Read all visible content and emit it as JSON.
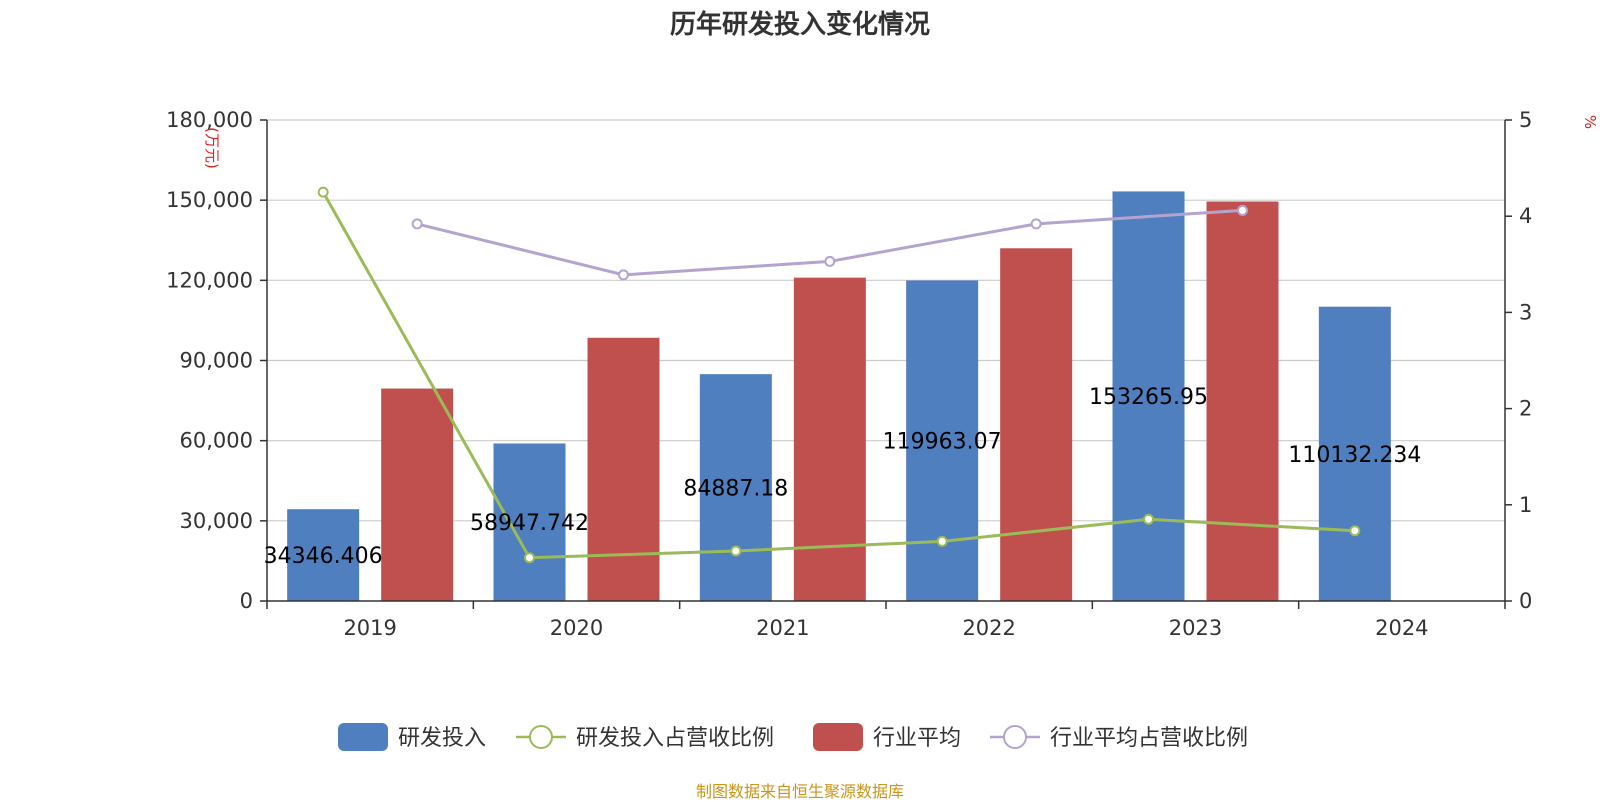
{
  "chart_data": {
    "type": "bar",
    "title": "历年研发投入变化情况",
    "categories": [
      "2019",
      "2020",
      "2021",
      "2022",
      "2023",
      "2024"
    ],
    "left_axis": {
      "unit": "(万元)",
      "range": [
        0,
        180000
      ],
      "ticks": [
        "0",
        "30,000",
        "60,000",
        "90,000",
        "120,000",
        "150,000",
        "180,000"
      ]
    },
    "right_axis": {
      "unit": "%",
      "range": [
        0,
        5
      ],
      "ticks": [
        "0",
        "1",
        "2",
        "3",
        "4",
        "5"
      ]
    },
    "grid": true,
    "legend_position": "bottom",
    "series": [
      {
        "name": "研发投入",
        "kind": "bar",
        "axis": "left",
        "color": "#4f7fbe",
        "values": [
          34346.406,
          58947.742,
          84887.18,
          119963.07,
          153265.95,
          110132.234
        ],
        "labels": [
          "34346.406",
          "58947.742",
          "84887.18",
          "119963.07",
          "153265.95",
          "110132.234"
        ]
      },
      {
        "name": "研发投入占营收比例",
        "kind": "line",
        "axis": "right",
        "color": "#9bbb59",
        "values": [
          4.25,
          0.45,
          0.52,
          0.62,
          0.85,
          0.73
        ]
      },
      {
        "name": "行业平均",
        "kind": "bar",
        "axis": "left",
        "color": "#c0504d",
        "values": [
          79500,
          98500,
          121000,
          132000,
          149500,
          null
        ]
      },
      {
        "name": "行业平均占营收比例",
        "kind": "line",
        "axis": "right",
        "color": "#b3a3cf",
        "values": [
          3.92,
          3.39,
          3.53,
          3.92,
          4.06,
          null
        ]
      }
    ]
  },
  "source_note": "制图数据来自恒生聚源数据库"
}
